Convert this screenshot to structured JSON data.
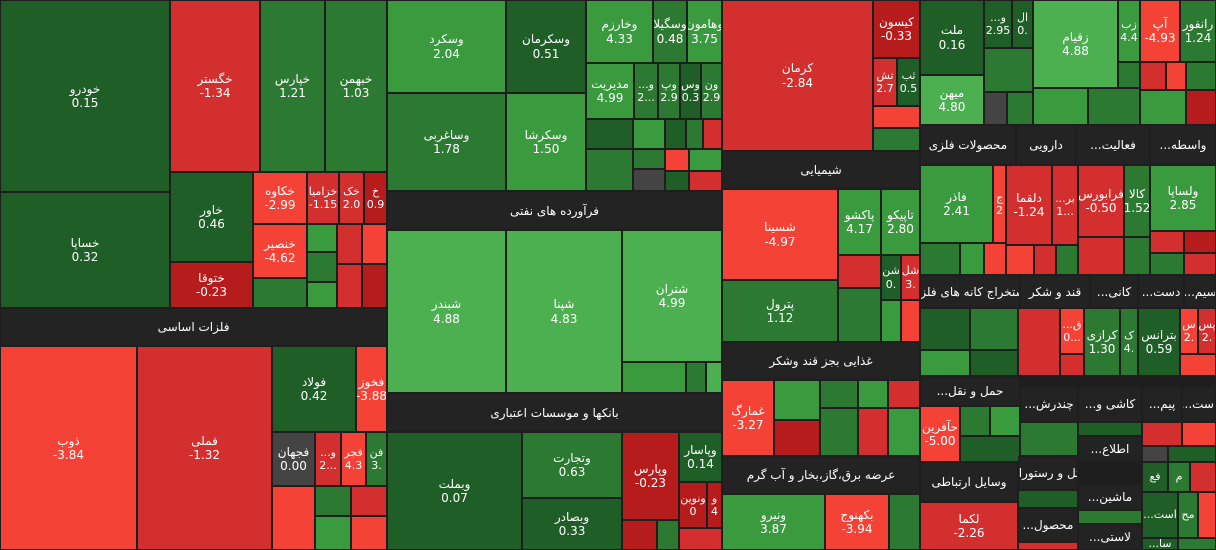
{
  "colors": {
    "bright_green": "#4caf50",
    "medium_green": "#3a9a3e",
    "dark_green": "#2c7a32",
    "darker_green": "#1f5e26",
    "bright_red": "#f44336",
    "medium_red": "#d32f2f",
    "dark_red": "#b71c1c",
    "neutral": "#444444",
    "header_bg": "#232323"
  },
  "sectors": {
    "felezat": "فلزات اساسی",
    "faravardeh": "فرآورده های نفتی",
    "banks": "بانکها و موسسات اعتباری",
    "shimiaee": "شیمیایی",
    "ghazaee": "غذایی بجز قند وشکر",
    "bargh": "عرضه برق،گاز،بخار و آب گرم",
    "mahsoolat_felezi": "محصولات فلزی",
    "darooee": "دارویی",
    "faaliat": "فعالیت...",
    "vaseteh": "واسطه...",
    "estekhraj": "استخراج کانه های فلزی",
    "ghand": "قند و شکر",
    "kani": "کانی...",
    "dast": "دست...",
    "sim": "سیم...",
    "haml": "حمل و نقل...",
    "chandresh": "چندرش...",
    "kashi": "کاشی و...",
    "peym": "پیم...",
    "ast": "است...",
    "vasayel": "وسایل ارتباطی",
    "hotel": "هتل و رستوران",
    "mashin": "ماشین...",
    "mahsool": "محصول...",
    "ettela": "اطلاع...",
    "lastik": "لاستی..."
  },
  "cells": {
    "khodro": {
      "name": "خودرو",
      "value": "0.15"
    },
    "khsapa": {
      "name": "خساپا",
      "value": "0.32"
    },
    "khgostar": {
      "name": "خگستر",
      "value": "-1.34"
    },
    "khavar": {
      "name": "خاور",
      "value": "0.46"
    },
    "khtoga": {
      "name": "ختوقا",
      "value": "-0.23"
    },
    "kharis": {
      "name": "خپارس",
      "value": "1.21"
    },
    "khbahman": {
      "name": "خبهمن",
      "value": "1.03"
    },
    "khakah": {
      "name": "خکاوه",
      "value": "-2.99"
    },
    "khzamia": {
      "name": "خزامیا",
      "value": "-1.15"
    },
    "khak": {
      "name": "خک",
      "value": "2.0"
    },
    "kh": {
      "name": "خ",
      "value": "0.9"
    },
    "khnasir": {
      "name": "خنصیر",
      "value": "-4.62"
    },
    "zob": {
      "name": "ذوب",
      "value": "-3.84"
    },
    "fameli": {
      "name": "فملی",
      "value": "-1.32"
    },
    "foolad": {
      "name": "فولاد",
      "value": "0.42"
    },
    "fkhooz": {
      "name": "فخوز",
      "value": "-3.88"
    },
    "fjahan": {
      "name": "فجهان",
      "value": "0.00"
    },
    "v_dots": {
      "name": "و...",
      "value": "2..."
    },
    "fajr": {
      "name": "فجر",
      "value": "4.3"
    },
    "fan": {
      "name": "فن",
      "value": "3."
    },
    "vskerd": {
      "name": "وسکرد",
      "value": "2.04"
    },
    "vskerman": {
      "name": "وسکرمان",
      "value": "0.51"
    },
    "vkharazm": {
      "name": "وخارزم",
      "value": "4.33"
    },
    "vsgila": {
      "name": "وسگیلا",
      "value": "0.48"
    },
    "vahamoon": {
      "name": "وهامون",
      "value": "3.75"
    },
    "vsaghari": {
      "name": "وساغربی",
      "value": "1.78"
    },
    "vskersha": {
      "name": "وسکرشا",
      "value": "1.50"
    },
    "modirit": {
      "name": "مدیریت",
      "value": "4.99"
    },
    "v_small": {
      "name": "و...",
      "value": "2..."
    },
    "vp": {
      "name": "وپ",
      "value": "2.9"
    },
    "vs": {
      "name": "وس",
      "value": "0.3"
    },
    "von": {
      "name": "ون",
      "value": "2.9"
    },
    "shbandar": {
      "name": "شبندر",
      "value": "4.88"
    },
    "shpna": {
      "name": "شپنا",
      "value": "4.83"
    },
    "shtran": {
      "name": "شتران",
      "value": "4.99"
    },
    "vbmelt": {
      "name": "وبملت",
      "value": "0.07"
    },
    "vtejarat": {
      "name": "وتجارت",
      "value": "0.63"
    },
    "vbsader": {
      "name": "وبصادر",
      "value": "0.33"
    },
    "vparis": {
      "name": "وپارس",
      "value": "-0.23"
    },
    "vpasar": {
      "name": "وپاسار",
      "value": "0.14"
    },
    "vnovin": {
      "name": "ونوین",
      "value": "0"
    },
    "v_tiny": {
      "name": "و",
      "value": "4"
    },
    "kerman": {
      "name": "کرمان",
      "value": "-2.84"
    },
    "kesoon": {
      "name": "کیسون",
      "value": "-0.33"
    },
    "tash": {
      "name": "تش",
      "value": "2.7"
    },
    "sab": {
      "name": "ثب",
      "value": "0.5"
    },
    "shasina": {
      "name": "شسینا",
      "value": "-4.97"
    },
    "pakshou": {
      "name": "پاکشو",
      "value": "4.17"
    },
    "tapiko": {
      "name": "تاپیکو",
      "value": "2.80"
    },
    "shel": {
      "name": "شل",
      "value": "3."
    },
    "shn": {
      "name": "شن",
      "value": "0."
    },
    "petrol": {
      "name": "پترول",
      "value": "1.12"
    },
    "ghmarg": {
      "name": "غمارگ",
      "value": "-3.27"
    },
    "vniro": {
      "name": "ونیرو",
      "value": "3.87"
    },
    "bkahnooj": {
      "name": "بکهنوج",
      "value": "-3.94"
    },
    "melat": {
      "name": "ملت",
      "value": "0.16"
    },
    "v_med": {
      "name": "و...",
      "value": "2.95"
    },
    "al": {
      "name": "ال",
      "value": "0."
    },
    "zagheim": {
      "name": "زقیام",
      "value": "4.88"
    },
    "zab": {
      "name": "زب",
      "value": "4.4"
    },
    "ab": {
      "name": "آپ",
      "value": "-4.93"
    },
    "ranfour": {
      "name": "رانفور",
      "value": "1.24"
    },
    "mihan": {
      "name": "میهن",
      "value": "4.80"
    },
    "fader": {
      "name": "فاذر",
      "value": "2.41"
    },
    "fj": {
      "name": "ج",
      "value": "2"
    },
    "dlghma": {
      "name": "دلقما",
      "value": "-1.24"
    },
    "br": {
      "name": "بر...",
      "value": "1..."
    },
    "faraboors": {
      "name": "فرابورس",
      "value": "-0.50"
    },
    "kala": {
      "name": "کالا",
      "value": "1.52"
    },
    "vlsapa": {
      "name": "ولساپا",
      "value": "2.85"
    },
    "gh": {
      "name": "ق...",
      "value": "0..."
    },
    "krazi": {
      "name": "کرازی",
      "value": "1.30"
    },
    "k": {
      "name": "ک",
      "value": "4."
    },
    "betrans": {
      "name": "بترانس",
      "value": "0.59"
    },
    "s": {
      "name": "س",
      "value": "2."
    },
    "ps": {
      "name": "پس",
      "value": "2."
    },
    "hafarin": {
      "name": "حآفرین",
      "value": "-5.00"
    },
    "lakma": {
      "name": "لکما",
      "value": "-2.26"
    },
    "fa": {
      "name": "فع",
      "value": ""
    },
    "m": {
      "name": "م",
      "value": ""
    },
    "ast2": {
      "name": "است...",
      "value": ""
    },
    "mh": {
      "name": "مح",
      "value": ""
    },
    "sal": {
      "name": "سا...",
      "value": ""
    }
  }
}
